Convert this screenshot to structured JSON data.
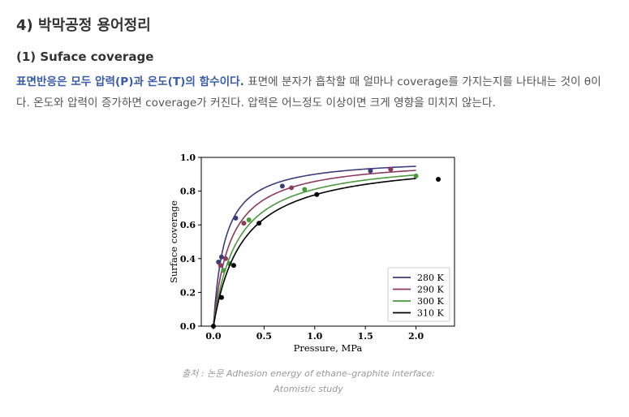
{
  "heading": "4) 박막공정 용어정리",
  "subheading": "(1) Suface coverage",
  "paragraph": {
    "highlight": "표면반응은 모두 압력(P)과 온도(T)의 함수이다.",
    "text": " 표면에 분자가 흡착할 때 얼마나 coverage를 가지는지를 나타내는 것이 θ이다. 온도와 압력이 증가하면 coverage가 커진다. 압력은 어느정도 이상이면 크게 영향을 미치지 않는다."
  },
  "caption": {
    "line1": "출처 : 논문 Adhesion energy of ethane–graphite interface:",
    "line2": "Atomistic study"
  },
  "chart_data": {
    "type": "scatter",
    "xlabel": "Pressure, MPa",
    "ylabel": "Surface coverage",
    "xlim": [
      -0.12,
      2.38
    ],
    "ylim": [
      0,
      1.0
    ],
    "xticks": [
      "0.0",
      "0.5",
      "1.0",
      "1.5",
      "2.0"
    ],
    "yticks": [
      "0.0",
      "0.2",
      "0.4",
      "0.6",
      "0.8",
      "1.0"
    ],
    "legend_position": "bottom-right",
    "series": [
      {
        "name": "280 K",
        "color": "#3d3b7a",
        "langmuir_K": 9.0,
        "points": [
          [
            0.05,
            0.38
          ],
          [
            0.08,
            0.41
          ],
          [
            0.22,
            0.64
          ],
          [
            0.68,
            0.83
          ],
          [
            1.55,
            0.92
          ],
          [
            1.75,
            0.93
          ]
        ]
      },
      {
        "name": "290 K",
        "color": "#8b3a5c",
        "langmuir_K": 6.0,
        "points": [
          [
            0.07,
            0.36
          ],
          [
            0.12,
            0.4
          ],
          [
            0.3,
            0.61
          ],
          [
            0.77,
            0.82
          ],
          [
            1.75,
            0.93
          ]
        ]
      },
      {
        "name": "300 K",
        "color": "#4a9a3c",
        "langmuir_K": 4.3,
        "points": [
          [
            0.1,
            0.33
          ],
          [
            0.16,
            0.37
          ],
          [
            0.35,
            0.63
          ],
          [
            0.9,
            0.81
          ],
          [
            2.0,
            0.89
          ]
        ]
      },
      {
        "name": "310 K",
        "color": "#000000",
        "langmuir_K": 3.5,
        "points": [
          [
            0.0,
            0.0
          ],
          [
            0.08,
            0.17
          ],
          [
            0.2,
            0.36
          ],
          [
            0.45,
            0.61
          ],
          [
            1.02,
            0.78
          ],
          [
            2.22,
            0.87
          ]
        ]
      }
    ]
  }
}
